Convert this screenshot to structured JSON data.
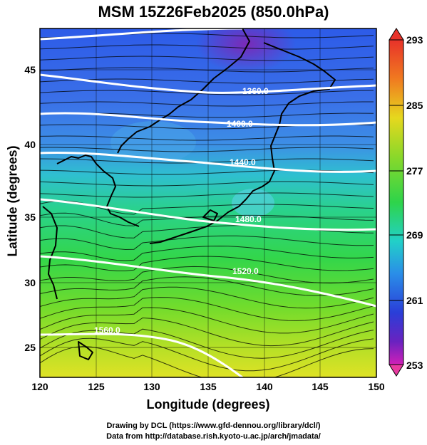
{
  "title": "MSM 15Z26Feb2025 (850.0hPa)",
  "x_axis": {
    "label": "Longitude (degrees)",
    "ticks": [
      "120",
      "125",
      "130",
      "135",
      "140",
      "145",
      "150"
    ]
  },
  "y_axis": {
    "label": "Latitude  (degrees)",
    "ticks": [
      "25",
      "30",
      "35",
      "40",
      "45"
    ]
  },
  "colorbar": {
    "ticks": [
      "293",
      "285",
      "277",
      "269",
      "261",
      "253"
    ],
    "min": 253,
    "max": 293
  },
  "contour_labels": [
    "1360.0",
    "1400.0",
    "1440.0",
    "1480.0",
    "1520.0",
    "1560.0"
  ],
  "credits": [
    "Drawing by DCL (https://www.gfd-dennou.org/library/dcl/)",
    "Data from http://database.rish.kyoto-u.ac.jp/arch/jmadata/"
  ],
  "chart_data": {
    "type": "heatmap",
    "title": "MSM 15Z26Feb2025 (850.0hPa)",
    "xlabel": "Longitude (degrees)",
    "ylabel": "Latitude  (degrees)",
    "xlim": [
      120,
      150
    ],
    "ylim": [
      22.4,
      47.6
    ],
    "colorbar_range": [
      253,
      293
    ],
    "contour_levels": [
      1360,
      1400,
      1440,
      1480,
      1520,
      1560
    ],
    "colors": {
      "cold": "#7a1fb8",
      "cool": "#2a4fe0",
      "mid": "#20c8c0",
      "warm": "#3ed63a",
      "hot": "#e8e020"
    }
  }
}
